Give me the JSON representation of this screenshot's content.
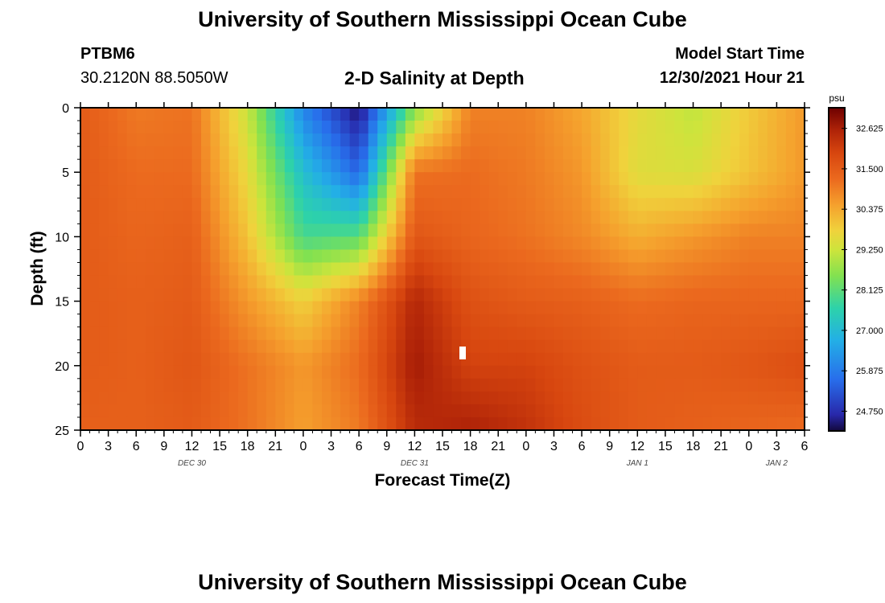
{
  "header": {
    "title": "University of Southern Mississippi Ocean Cube",
    "station": "PTBM6",
    "coordinates": "30.2120N  88.5050W",
    "subtitle": "2-D Salinity at Depth",
    "model_start_label": "Model Start Time",
    "model_start_value": "12/30/2021 Hour 21"
  },
  "footer": {
    "title": "University of Southern Mississippi Ocean Cube"
  },
  "chart_data": {
    "type": "heatmap",
    "title": "2-D Salinity at Depth",
    "xlabel": "Forecast Time(Z)",
    "ylabel": "Depth (ft)",
    "x_ticks": [
      "0",
      "3",
      "6",
      "9",
      "12",
      "15",
      "18",
      "21",
      "0",
      "3",
      "6",
      "9",
      "12",
      "15",
      "18",
      "21",
      "0",
      "3",
      "6",
      "9",
      "12",
      "15",
      "18",
      "21",
      "0",
      "3",
      "6"
    ],
    "x_tick_step_hours": 3,
    "xlim_hours": [
      0,
      78
    ],
    "date_labels": [
      {
        "label": "DEC 30",
        "hour": 12
      },
      {
        "label": "DEC 31",
        "hour": 36
      },
      {
        "label": "JAN 1",
        "hour": 60
      },
      {
        "label": "JAN 2",
        "hour": 75
      }
    ],
    "y_ticks": [
      "0",
      "5",
      "10",
      "15",
      "20",
      "25"
    ],
    "ylim": [
      0,
      25
    ],
    "y_inverted": true,
    "colorbar": {
      "unit": "psu",
      "tick_labels": [
        "32.625",
        "31.500",
        "30.375",
        "29.250",
        "28.125",
        "27.000",
        "25.875",
        "24.750"
      ],
      "range": [
        24.2,
        33.2
      ]
    },
    "grid_hours": [
      0,
      6,
      12,
      18,
      24,
      30,
      36,
      42,
      48,
      54,
      60,
      66,
      72,
      78
    ],
    "grid_depths_ft": [
      0,
      5,
      10,
      15,
      20,
      25
    ],
    "salinity_psu": [
      [
        31.5,
        31.0,
        31.1,
        29.2,
        26.0,
        24.3,
        28.5,
        30.9,
        30.9,
        30.4,
        29.6,
        29.1,
        29.9,
        30.6
      ],
      [
        31.5,
        31.2,
        31.2,
        29.6,
        27.1,
        25.5,
        31.1,
        31.2,
        31.0,
        30.6,
        29.5,
        29.4,
        30.0,
        30.6
      ],
      [
        31.5,
        31.3,
        31.4,
        30.0,
        27.9,
        28.1,
        31.6,
        31.3,
        31.1,
        30.8,
        30.3,
        30.6,
        30.9,
        30.9
      ],
      [
        31.5,
        31.4,
        31.5,
        30.6,
        29.8,
        30.9,
        32.5,
        31.7,
        31.5,
        31.4,
        31.2,
        31.3,
        31.3,
        31.3
      ],
      [
        31.5,
        31.4,
        31.6,
        31.1,
        30.6,
        31.2,
        32.7,
        32.0,
        32.0,
        31.7,
        31.5,
        31.5,
        31.6,
        31.8
      ],
      [
        31.4,
        31.4,
        31.5,
        31.1,
        30.5,
        31.0,
        32.4,
        32.6,
        32.3,
        31.8,
        31.5,
        31.4,
        31.3,
        31.2
      ]
    ]
  }
}
